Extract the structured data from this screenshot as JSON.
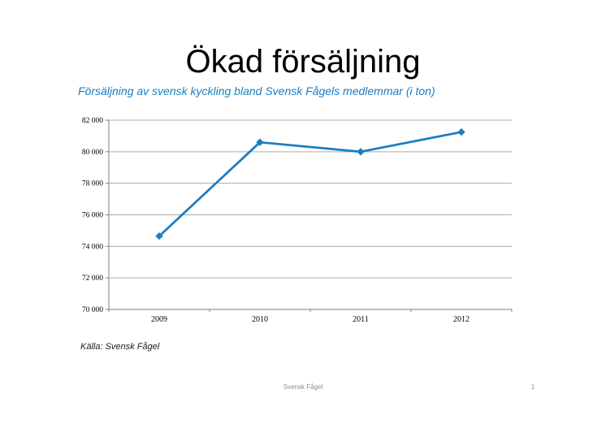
{
  "slide": {
    "title": "Ökad försäljning",
    "subtitle": "Försäljning av svensk kyckling bland Svensk Fågels medlemmar (i ton)",
    "source_note": "Källa: Svensk Fågel",
    "footer_text": "Svensk Fågel",
    "page_number": "1"
  },
  "colors": {
    "accent_blue": "#1B7DC2",
    "gridline_gray": "#ACACAC",
    "axis_gray": "#7F7F7F",
    "footer_gray": "#8C8C8C"
  },
  "chart_data": {
    "type": "line",
    "title": "",
    "categories": [
      "2009",
      "2010",
      "2011",
      "2012"
    ],
    "values": [
      74650,
      80600,
      80000,
      81250
    ],
    "xlabel": "",
    "ylabel": "",
    "ylim": [
      70000,
      82000
    ],
    "ytick_step": 2000,
    "ytick_labels": [
      "70 000",
      "72 000",
      "74 000",
      "76 000",
      "78 000",
      "80 000",
      "82 000"
    ],
    "grid": true,
    "legend_position": "none",
    "marker": "diamond",
    "line_color": "#1B7DC2"
  }
}
